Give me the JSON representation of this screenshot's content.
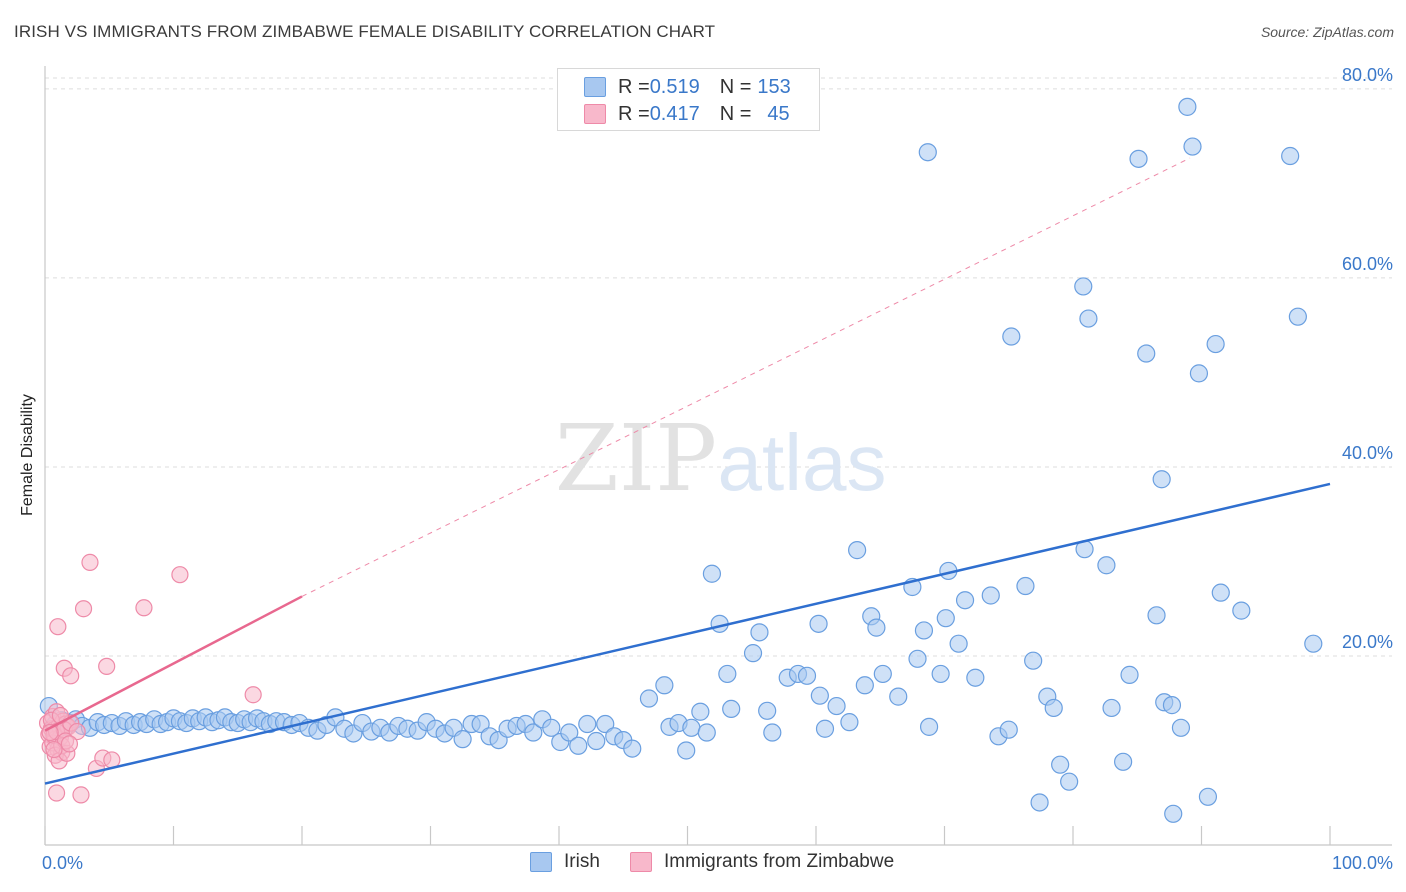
{
  "title": "IRISH VS IMMIGRANTS FROM ZIMBABWE FEMALE DISABILITY CORRELATION CHART",
  "source": "Source: ZipAtlas.com",
  "watermark": {
    "zip": "ZIP",
    "atlas": "atlas"
  },
  "legend": {
    "irish": {
      "r_label": "R = ",
      "r_value": "0.519",
      "n_label": "N = ",
      "n_value": "153"
    },
    "zimbabwe": {
      "r_label": "R = ",
      "r_value": "0.417",
      "n_label": "N = ",
      "n_value": "45"
    }
  },
  "colors": {
    "irish_fill": "#a8c8f0",
    "irish_stroke": "#6a9fe0",
    "irish_line": "#2f6fcf",
    "zim_fill": "#f8b8cb",
    "zim_stroke": "#ee8aa8",
    "zim_line": "#e8688f",
    "axis_text": "#3a78c9",
    "grid": "#dddddd"
  },
  "chart_data": {
    "type": "scatter",
    "title": "IRISH VS IMMIGRANTS FROM ZIMBABWE FEMALE DISABILITY CORRELATION CHART",
    "xlabel": "",
    "ylabel": "Female Disability",
    "xlim": [
      0,
      100
    ],
    "ylim": [
      0,
      82
    ],
    "x_tick_labels": [
      "0.0%",
      "100.0%"
    ],
    "y_ticks": [
      20,
      40,
      60,
      80
    ],
    "y_tick_labels": [
      "20.0%",
      "40.0%",
      "60.0%",
      "80.0%"
    ],
    "legend_position": "top-center",
    "series": [
      {
        "name": "Irish",
        "r": 0.519,
        "n": 153,
        "trendline": {
          "x": [
            0,
            100
          ],
          "y": [
            6.5,
            38.2
          ],
          "style": "solid"
        },
        "points": [
          [
            0.3,
            14.7
          ],
          [
            0.8,
            12.8
          ],
          [
            1.3,
            13.2
          ],
          [
            1.6,
            12.5
          ],
          [
            2.0,
            12.9
          ],
          [
            2.4,
            13.3
          ],
          [
            2.9,
            12.6
          ],
          [
            3.5,
            12.4
          ],
          [
            4.1,
            13.0
          ],
          [
            4.6,
            12.7
          ],
          [
            5.2,
            12.9
          ],
          [
            5.8,
            12.6
          ],
          [
            6.3,
            13.1
          ],
          [
            6.9,
            12.7
          ],
          [
            7.4,
            13.0
          ],
          [
            7.9,
            12.8
          ],
          [
            8.5,
            13.3
          ],
          [
            9.0,
            12.8
          ],
          [
            9.5,
            13.0
          ],
          [
            10.0,
            13.4
          ],
          [
            10.5,
            13.1
          ],
          [
            11.0,
            12.9
          ],
          [
            11.5,
            13.4
          ],
          [
            12.0,
            13.1
          ],
          [
            12.5,
            13.5
          ],
          [
            13.0,
            13.0
          ],
          [
            13.5,
            13.2
          ],
          [
            14.0,
            13.5
          ],
          [
            14.5,
            13.0
          ],
          [
            15.0,
            12.9
          ],
          [
            15.5,
            13.3
          ],
          [
            16.0,
            13.0
          ],
          [
            16.5,
            13.4
          ],
          [
            17.0,
            13.1
          ],
          [
            17.5,
            12.8
          ],
          [
            18.0,
            13.1
          ],
          [
            18.6,
            13.0
          ],
          [
            19.2,
            12.7
          ],
          [
            19.8,
            12.9
          ],
          [
            20.5,
            12.4
          ],
          [
            21.2,
            12.1
          ],
          [
            21.9,
            12.7
          ],
          [
            22.6,
            13.5
          ],
          [
            23.3,
            12.3
          ],
          [
            24.0,
            11.8
          ],
          [
            24.7,
            12.9
          ],
          [
            25.4,
            12.0
          ],
          [
            26.1,
            12.4
          ],
          [
            26.8,
            11.9
          ],
          [
            27.5,
            12.6
          ],
          [
            28.2,
            12.3
          ],
          [
            29.0,
            12.1
          ],
          [
            29.7,
            13.0
          ],
          [
            30.4,
            12.3
          ],
          [
            31.1,
            11.8
          ],
          [
            31.8,
            12.4
          ],
          [
            32.5,
            11.2
          ],
          [
            33.2,
            12.8
          ],
          [
            33.9,
            12.8
          ],
          [
            34.6,
            11.5
          ],
          [
            35.3,
            11.1
          ],
          [
            36.0,
            12.3
          ],
          [
            36.7,
            12.6
          ],
          [
            37.4,
            12.8
          ],
          [
            38.0,
            11.9
          ],
          [
            38.7,
            13.3
          ],
          [
            39.4,
            12.4
          ],
          [
            40.1,
            10.9
          ],
          [
            40.8,
            11.9
          ],
          [
            41.5,
            10.5
          ],
          [
            42.2,
            12.8
          ],
          [
            42.9,
            11.0
          ],
          [
            43.6,
            12.8
          ],
          [
            44.3,
            11.5
          ],
          [
            45.0,
            11.1
          ],
          [
            45.7,
            10.2
          ],
          [
            47.0,
            15.5
          ],
          [
            48.2,
            16.9
          ],
          [
            48.6,
            12.5
          ],
          [
            49.3,
            12.9
          ],
          [
            49.9,
            10.0
          ],
          [
            50.3,
            12.4
          ],
          [
            51.0,
            14.1
          ],
          [
            51.5,
            11.9
          ],
          [
            51.9,
            28.7
          ],
          [
            52.5,
            23.4
          ],
          [
            53.1,
            18.1
          ],
          [
            53.4,
            14.4
          ],
          [
            55.1,
            20.3
          ],
          [
            55.6,
            22.5
          ],
          [
            56.2,
            14.2
          ],
          [
            56.6,
            11.9
          ],
          [
            57.8,
            17.7
          ],
          [
            58.6,
            18.1
          ],
          [
            59.3,
            17.9
          ],
          [
            60.3,
            15.8
          ],
          [
            60.7,
            12.3
          ],
          [
            61.6,
            14.7
          ],
          [
            62.6,
            13.0
          ],
          [
            63.8,
            16.9
          ],
          [
            64.3,
            24.2
          ],
          [
            64.7,
            23.0
          ],
          [
            65.2,
            18.1
          ],
          [
            66.4,
            15.7
          ],
          [
            67.9,
            19.7
          ],
          [
            68.4,
            22.7
          ],
          [
            68.8,
            12.5
          ],
          [
            69.7,
            18.1
          ],
          [
            70.1,
            24.0
          ],
          [
            71.1,
            21.3
          ],
          [
            71.6,
            25.9
          ],
          [
            72.4,
            17.7
          ],
          [
            73.6,
            26.4
          ],
          [
            74.2,
            11.5
          ],
          [
            75.0,
            12.2
          ],
          [
            76.3,
            27.4
          ],
          [
            76.9,
            19.5
          ],
          [
            77.4,
            4.5
          ],
          [
            78.0,
            15.7
          ],
          [
            78.5,
            14.5
          ],
          [
            79.0,
            8.5
          ],
          [
            79.7,
            6.7
          ],
          [
            80.8,
            59.1
          ],
          [
            80.9,
            31.3
          ],
          [
            81.2,
            55.7
          ],
          [
            82.6,
            29.6
          ],
          [
            83.0,
            14.5
          ],
          [
            83.9,
            8.8
          ],
          [
            84.4,
            18.0
          ],
          [
            85.1,
            72.6
          ],
          [
            85.7,
            52.0
          ],
          [
            86.5,
            24.3
          ],
          [
            86.9,
            38.7
          ],
          [
            87.1,
            15.1
          ],
          [
            87.7,
            14.8
          ],
          [
            87.8,
            3.3
          ],
          [
            88.4,
            12.4
          ],
          [
            88.9,
            78.1
          ],
          [
            89.3,
            73.9
          ],
          [
            89.8,
            49.9
          ],
          [
            90.5,
            5.1
          ],
          [
            91.1,
            53.0
          ],
          [
            91.5,
            26.7
          ],
          [
            93.1,
            24.8
          ],
          [
            96.9,
            72.9
          ],
          [
            97.5,
            55.9
          ],
          [
            98.7,
            21.3
          ],
          [
            60.2,
            23.4
          ],
          [
            63.2,
            31.2
          ],
          [
            70.3,
            29.0
          ],
          [
            68.7,
            73.3
          ],
          [
            75.2,
            53.8
          ],
          [
            67.5,
            27.3
          ]
        ]
      },
      {
        "name": "Immigrants from Zimbabwe",
        "r": 0.417,
        "n": 45,
        "trendline": {
          "x": [
            0,
            20,
            100
          ],
          "y": [
            12.1,
            26.3,
            80.0
          ],
          "style": "solid to x=20, dashed beyond"
        },
        "points": [
          [
            0.2,
            12.9
          ],
          [
            0.3,
            11.7
          ],
          [
            0.4,
            10.4
          ],
          [
            0.5,
            12.3
          ],
          [
            0.6,
            13.6
          ],
          [
            0.7,
            12.2
          ],
          [
            0.8,
            11.2
          ],
          [
            0.9,
            14.1
          ],
          [
            1.0,
            10.1
          ],
          [
            1.1,
            12.6
          ],
          [
            1.2,
            11.4
          ],
          [
            1.3,
            9.8
          ],
          [
            1.4,
            13.1
          ],
          [
            1.6,
            12.8
          ],
          [
            1.8,
            12.5
          ],
          [
            0.5,
            13.2
          ],
          [
            0.6,
            10.8
          ],
          [
            0.7,
            11.6
          ],
          [
            0.8,
            9.5
          ],
          [
            0.9,
            12.0
          ],
          [
            1.1,
            8.9
          ],
          [
            1.3,
            10.5
          ],
          [
            1.5,
            12.2
          ],
          [
            1.7,
            9.7
          ],
          [
            2.0,
            12.9
          ],
          [
            1.0,
            23.1
          ],
          [
            1.5,
            18.7
          ],
          [
            2.0,
            17.9
          ],
          [
            2.5,
            12.0
          ],
          [
            2.8,
            5.3
          ],
          [
            3.0,
            25.0
          ],
          [
            3.5,
            29.9
          ],
          [
            4.0,
            8.1
          ],
          [
            4.5,
            9.2
          ],
          [
            4.8,
            18.9
          ],
          [
            5.2,
            9.0
          ],
          [
            7.7,
            25.1
          ],
          [
            10.5,
            28.6
          ],
          [
            16.2,
            15.9
          ],
          [
            1.2,
            13.7
          ],
          [
            0.9,
            5.5
          ],
          [
            1.6,
            11.0
          ],
          [
            0.4,
            11.9
          ],
          [
            0.7,
            10.1
          ],
          [
            1.9,
            10.7
          ]
        ]
      }
    ]
  },
  "axis_labels": {
    "x_min": "0.0%",
    "x_max": "100.0%",
    "y_label": "Female Disability"
  },
  "bottom_legend": {
    "irish": "Irish",
    "zimbabwe": "Immigrants from Zimbabwe"
  }
}
